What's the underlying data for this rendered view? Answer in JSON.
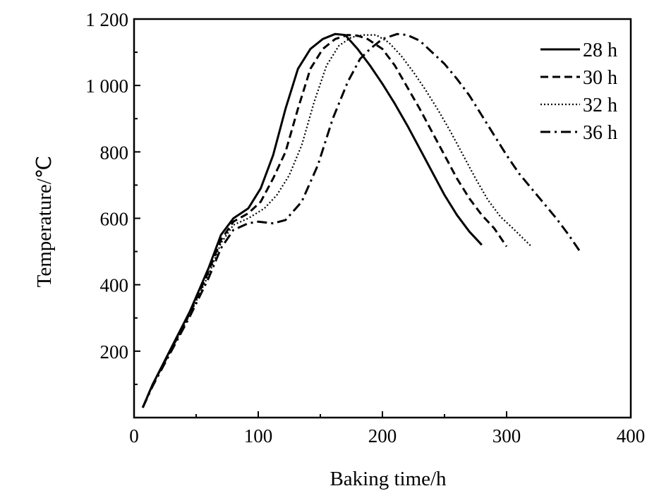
{
  "chart_data": {
    "type": "line",
    "title": "",
    "xlabel": "Baking time/h",
    "ylabel": "Temperature/℃",
    "xlim": [
      0,
      400
    ],
    "ylim": [
      0,
      1200
    ],
    "x_ticks": [
      0,
      100,
      200,
      300,
      400
    ],
    "x_tick_labels": [
      "0",
      "100",
      "200",
      "300",
      "400"
    ],
    "y_ticks": [
      200,
      400,
      600,
      800,
      1000,
      1200
    ],
    "y_tick_labels": [
      "200",
      "400",
      "600",
      "800",
      "1 000",
      "1 200"
    ],
    "grid": false,
    "legend_position": "top-right",
    "series": [
      {
        "name": "28 h",
        "style": "solid",
        "points": [
          [
            7,
            30
          ],
          [
            15,
            100
          ],
          [
            30,
            210
          ],
          [
            45,
            320
          ],
          [
            60,
            450
          ],
          [
            70,
            550
          ],
          [
            80,
            600
          ],
          [
            92,
            630
          ],
          [
            102,
            690
          ],
          [
            112,
            790
          ],
          [
            122,
            930
          ],
          [
            132,
            1050
          ],
          [
            142,
            1110
          ],
          [
            152,
            1140
          ],
          [
            162,
            1155
          ],
          [
            170,
            1152
          ],
          [
            180,
            1110
          ],
          [
            190,
            1060
          ],
          [
            200,
            1005
          ],
          [
            210,
            945
          ],
          [
            220,
            880
          ],
          [
            230,
            810
          ],
          [
            240,
            740
          ],
          [
            250,
            670
          ],
          [
            260,
            610
          ],
          [
            270,
            560
          ],
          [
            280,
            520
          ]
        ]
      },
      {
        "name": "30 h",
        "style": "dashed",
        "points": [
          [
            7,
            30
          ],
          [
            15,
            100
          ],
          [
            30,
            205
          ],
          [
            45,
            315
          ],
          [
            60,
            440
          ],
          [
            70,
            535
          ],
          [
            80,
            590
          ],
          [
            92,
            615
          ],
          [
            102,
            650
          ],
          [
            112,
            720
          ],
          [
            122,
            800
          ],
          [
            132,
            930
          ],
          [
            142,
            1050
          ],
          [
            152,
            1110
          ],
          [
            162,
            1140
          ],
          [
            172,
            1152
          ],
          [
            180,
            1150
          ],
          [
            188,
            1140
          ],
          [
            200,
            1110
          ],
          [
            210,
            1060
          ],
          [
            220,
            995
          ],
          [
            230,
            930
          ],
          [
            240,
            860
          ],
          [
            250,
            790
          ],
          [
            260,
            720
          ],
          [
            270,
            660
          ],
          [
            280,
            610
          ],
          [
            290,
            570
          ],
          [
            300,
            515
          ]
        ]
      },
      {
        "name": "32 h",
        "style": "dotted",
        "points": [
          [
            7,
            30
          ],
          [
            15,
            100
          ],
          [
            30,
            205
          ],
          [
            45,
            310
          ],
          [
            60,
            430
          ],
          [
            70,
            525
          ],
          [
            80,
            580
          ],
          [
            92,
            600
          ],
          [
            105,
            630
          ],
          [
            115,
            670
          ],
          [
            125,
            730
          ],
          [
            135,
            820
          ],
          [
            145,
            950
          ],
          [
            155,
            1060
          ],
          [
            165,
            1120
          ],
          [
            175,
            1145
          ],
          [
            185,
            1152
          ],
          [
            195,
            1152
          ],
          [
            205,
            1130
          ],
          [
            215,
            1090
          ],
          [
            225,
            1040
          ],
          [
            235,
            985
          ],
          [
            245,
            925
          ],
          [
            255,
            860
          ],
          [
            265,
            790
          ],
          [
            275,
            720
          ],
          [
            285,
            655
          ],
          [
            295,
            605
          ],
          [
            305,
            570
          ],
          [
            320,
            515
          ]
        ]
      },
      {
        "name": "36 h",
        "style": "dashdot",
        "points": [
          [
            7,
            30
          ],
          [
            15,
            95
          ],
          [
            30,
            200
          ],
          [
            45,
            305
          ],
          [
            60,
            420
          ],
          [
            70,
            510
          ],
          [
            80,
            565
          ],
          [
            92,
            585
          ],
          [
            100,
            590
          ],
          [
            112,
            585
          ],
          [
            122,
            595
          ],
          [
            135,
            650
          ],
          [
            148,
            760
          ],
          [
            160,
            900
          ],
          [
            172,
            1010
          ],
          [
            182,
            1080
          ],
          [
            190,
            1110
          ],
          [
            200,
            1140
          ],
          [
            212,
            1155
          ],
          [
            220,
            1152
          ],
          [
            230,
            1135
          ],
          [
            240,
            1100
          ],
          [
            250,
            1065
          ],
          [
            260,
            1020
          ],
          [
            270,
            970
          ],
          [
            280,
            910
          ],
          [
            290,
            850
          ],
          [
            300,
            790
          ],
          [
            310,
            735
          ],
          [
            320,
            690
          ],
          [
            330,
            645
          ],
          [
            340,
            600
          ],
          [
            350,
            550
          ],
          [
            360,
            495
          ]
        ]
      }
    ]
  }
}
